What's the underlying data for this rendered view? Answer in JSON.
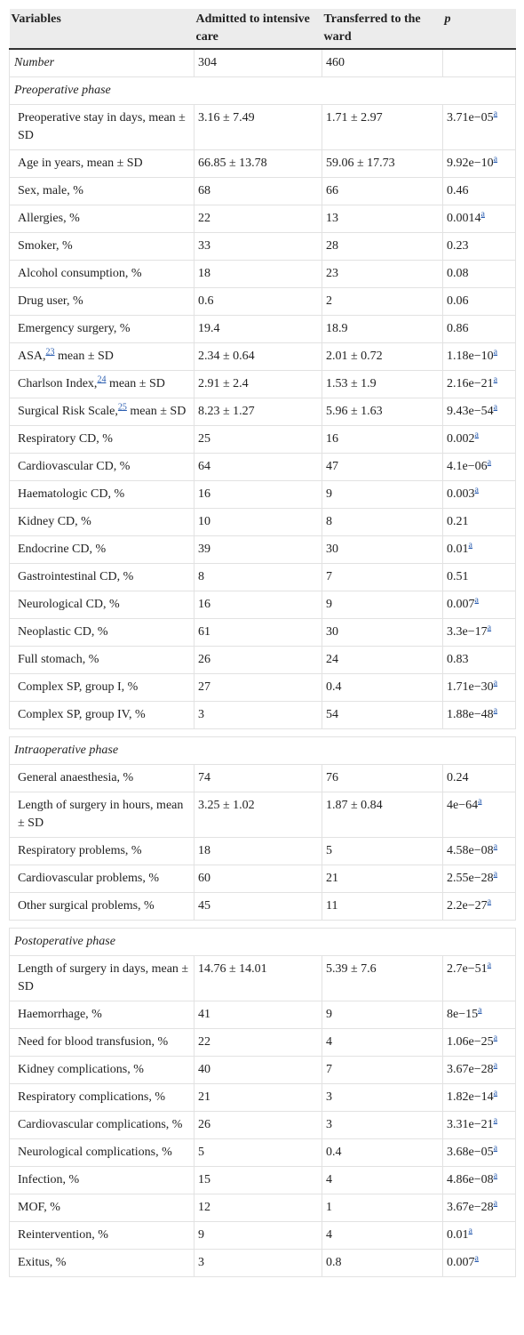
{
  "table": {
    "header": [
      "Variables",
      "Admitted to intensive care",
      "Transferred to the ward",
      "p"
    ],
    "rows": [
      {
        "label": "Number",
        "cells": [
          "304",
          "460",
          ""
        ]
      },
      {
        "section": "Preoperative phase"
      },
      {
        "cells": [
          "Preoperative stay in days, mean ± SD",
          "3.16 ± 7.49",
          "1.71 ± 2.97",
          "3.71e−05"
        ],
        "p_note": "a"
      },
      {
        "cells": [
          "Age in years, mean ± SD",
          "66.85 ± 13.78",
          "59.06 ± 17.73",
          "9.92e−10"
        ],
        "p_note": "a"
      },
      {
        "cells": [
          "Sex, male, %",
          "68",
          "66",
          "0.46"
        ]
      },
      {
        "cells": [
          "Allergies, %",
          "22",
          "13",
          "0.0014"
        ],
        "p_note": "a"
      },
      {
        "cells": [
          "Smoker, %",
          "33",
          "28",
          "0.23"
        ]
      },
      {
        "cells": [
          "Alcohol consumption, %",
          "18",
          "23",
          "0.08"
        ]
      },
      {
        "cells": [
          "Drug user, %",
          "0.6",
          "2",
          "0.06"
        ]
      },
      {
        "cells": [
          "Emergency surgery, %",
          "19.4",
          "18.9",
          "0.86"
        ]
      },
      {
        "cells": [
          [
            "ASA,",
            "23",
            " mean ± SD"
          ],
          "2.34 ± 0.64",
          "2.01 ± 0.72",
          "1.18e−10"
        ],
        "p_note": "a"
      },
      {
        "cells": [
          [
            "Charlson Index,",
            "24",
            " mean ± SD"
          ],
          "2.91 ± 2.4",
          "1.53 ± 1.9",
          "2.16e−21"
        ],
        "p_note": "a"
      },
      {
        "cells": [
          [
            "Surgical Risk Scale,",
            "25",
            " mean ± SD"
          ],
          "8.23 ± 1.27",
          "5.96 ± 1.63",
          "9.43e−54"
        ],
        "p_note": "a"
      },
      {
        "cells": [
          "Respiratory CD, %",
          "25",
          "16",
          "0.002"
        ],
        "p_note": "a"
      },
      {
        "cells": [
          "Cardiovascular CD, %",
          "64",
          "47",
          "4.1e−06"
        ],
        "p_note": "a"
      },
      {
        "cells": [
          "Haematologic CD, %",
          "16",
          "9",
          "0.003"
        ],
        "p_note": "a"
      },
      {
        "cells": [
          "Kidney CD, %",
          "10",
          "8",
          "0.21"
        ]
      },
      {
        "cells": [
          "Endocrine CD, %",
          "39",
          "30",
          "0.01"
        ],
        "p_note": "a"
      },
      {
        "cells": [
          "Gastrointestinal CD, %",
          "8",
          "7",
          "0.51"
        ]
      },
      {
        "cells": [
          "Neurological CD, %",
          "16",
          "9",
          "0.007"
        ],
        "p_note": "a"
      },
      {
        "cells": [
          "Neoplastic CD, %",
          "61",
          "30",
          "3.3e−17"
        ],
        "p_note": "a"
      },
      {
        "cells": [
          "Full stomach, %",
          "26",
          "24",
          "0.83"
        ]
      },
      {
        "cells": [
          "Complex SP, group I, %",
          "27",
          "0.4",
          "1.71e−30"
        ],
        "p_note": "a"
      },
      {
        "cells": [
          "Complex SP, group IV, %",
          "3",
          "54",
          "1.88e−48"
        ],
        "p_note": "a"
      },
      {
        "section": "Intraoperative phase"
      },
      {
        "cells": [
          "General anaesthesia, %",
          "74",
          "76",
          "0.24"
        ]
      },
      {
        "cells": [
          "Length of surgery in hours, mean ± SD",
          "3.25 ± 1.02",
          "1.87 ± 0.84",
          "4e−64"
        ],
        "p_note": "a"
      },
      {
        "cells": [
          "Respiratory problems, %",
          "18",
          "5",
          "4.58e−08"
        ],
        "p_note": "a"
      },
      {
        "cells": [
          "Cardiovascular problems, %",
          "60",
          "21",
          "2.55e−28"
        ],
        "p_note": "a"
      },
      {
        "cells": [
          "Other surgical problems, %",
          "45",
          "11",
          "2.2e−27"
        ],
        "p_note": "a"
      },
      {
        "section": "Postoperative phase"
      },
      {
        "cells": [
          "Length of surgery in days, mean ± SD",
          "14.76 ± 14.01",
          "5.39 ± 7.6",
          "2.7e−51"
        ],
        "p_note": "a"
      },
      {
        "cells": [
          "Haemorrhage, %",
          "41",
          "9",
          "8e−15"
        ],
        "p_note": "a"
      },
      {
        "cells": [
          "Need for blood transfusion, %",
          "22",
          "4",
          "1.06e−25"
        ],
        "p_note": "a"
      },
      {
        "cells": [
          "Kidney complications, %",
          "40",
          "7",
          "3.67e−28"
        ],
        "p_note": "a"
      },
      {
        "cells": [
          "Respiratory complications, %",
          "21",
          "3",
          "1.82e−14"
        ],
        "p_note": "a"
      },
      {
        "cells": [
          "Cardiovascular complications, %",
          "26",
          "3",
          "3.31e−21"
        ],
        "p_note": "a"
      },
      {
        "cells": [
          "Neurological complications, %",
          "5",
          "0.4",
          "3.68e−05"
        ],
        "p_note": "a"
      },
      {
        "cells": [
          "Infection, %",
          "15",
          "4",
          "4.86e−08"
        ],
        "p_note": "a"
      },
      {
        "cells": [
          "MOF, %",
          "12",
          "1",
          "3.67e−28"
        ],
        "p_note": "a"
      },
      {
        "cells": [
          "Reintervention, %",
          "9",
          "4",
          "0.01"
        ],
        "p_note": "a"
      },
      {
        "cells": [
          "Exitus, %",
          "3",
          "0.8",
          "0.007"
        ],
        "p_note": "a"
      }
    ]
  }
}
